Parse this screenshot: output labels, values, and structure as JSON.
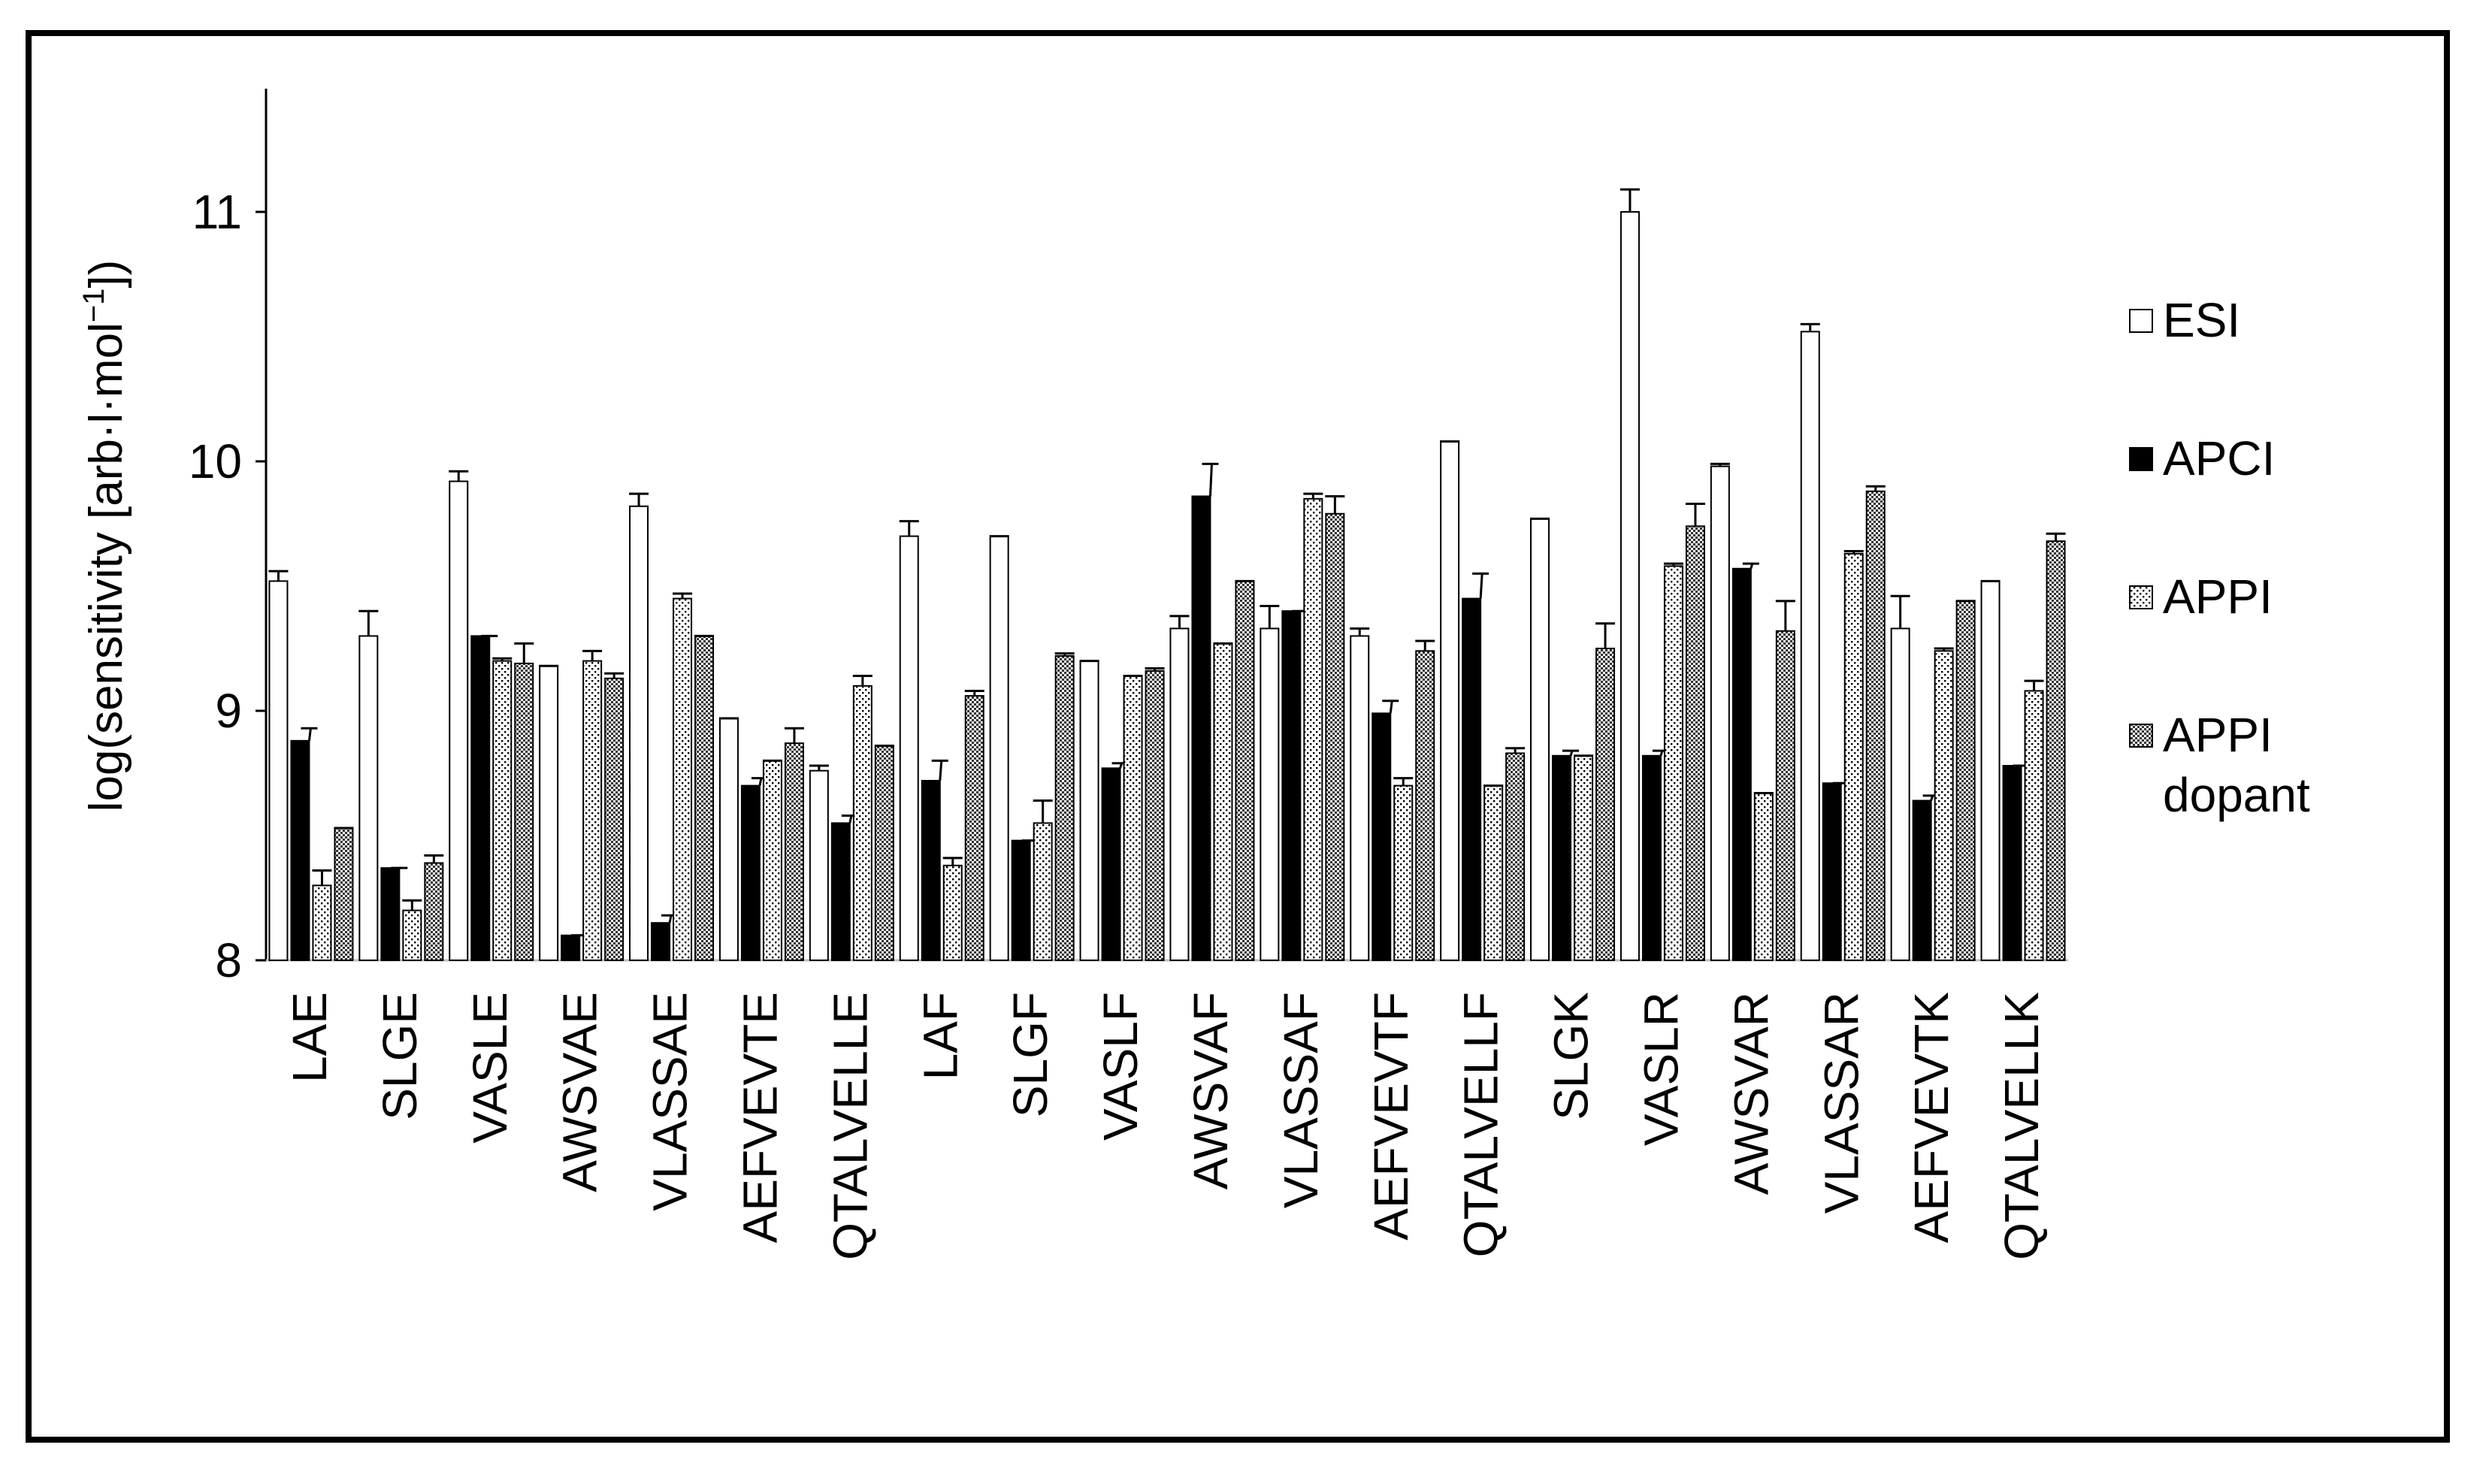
{
  "chart_data": {
    "type": "bar",
    "title": "",
    "xlabel": "",
    "ylabel": "log(sensitivity [arb·l·mol",
    "ylabel_exp": "−1",
    "ylabel_close": "])",
    "ylim": [
      8,
      11.5
    ],
    "yticks": [
      8,
      9,
      10,
      11
    ],
    "ytick_labels": [
      "8",
      "9",
      "10",
      "11"
    ],
    "grid": false,
    "legend_position": "right",
    "categories": [
      "LAE",
      "SLGE",
      "VASLE",
      "AWSVAE",
      "VLASSAE",
      "AEFVEVTE",
      "QTALVELLE",
      "LAF",
      "SLGF",
      "VASLF",
      "AWSVAF",
      "VLASSAF",
      "AEFVEVTF",
      "QTALVELLF",
      "SLGK",
      "VASLR",
      "AWSVAR",
      "VLASSAR",
      "AEFVEVTK",
      "QTALVELLK"
    ],
    "series": [
      {
        "name": "ESI",
        "legend_label": "ESI",
        "fill": "none",
        "values": [
          9.52,
          9.3,
          9.92,
          9.18,
          9.82,
          8.97,
          8.76,
          9.7,
          9.7,
          9.2,
          9.33,
          9.33,
          9.3,
          10.08,
          9.77,
          11.0,
          9.98,
          10.52,
          9.33,
          9.52
        ],
        "errors": [
          0.04,
          0.1,
          0.04,
          0.0,
          0.05,
          0.0,
          0.02,
          0.06,
          0.0,
          0.0,
          0.05,
          0.09,
          0.03,
          0.0,
          0.0,
          0.09,
          0.01,
          0.03,
          0.13,
          0.0
        ]
      },
      {
        "name": "APCI",
        "legend_label": "APCI",
        "fill": "solid",
        "values": [
          8.88,
          8.37,
          9.3,
          8.1,
          8.15,
          8.7,
          8.55,
          8.72,
          8.48,
          8.77,
          9.86,
          9.4,
          8.99,
          9.45,
          8.82,
          8.82,
          9.57,
          8.71,
          8.64,
          8.78
        ],
        "errors": [
          0.05,
          0.0,
          0.0,
          0.0,
          0.03,
          0.03,
          0.03,
          0.08,
          0.0,
          0.02,
          0.13,
          0.0,
          0.05,
          0.1,
          0.02,
          0.02,
          0.02,
          0.0,
          0.02,
          0.0
        ],
        "error_on_right_only": true
      },
      {
        "name": "APPI",
        "legend_label": "APPI",
        "fill": "dots",
        "values": [
          8.3,
          8.2,
          9.2,
          9.2,
          9.45,
          8.8,
          9.1,
          8.38,
          8.55,
          9.14,
          9.27,
          9.85,
          8.7,
          8.7,
          8.82,
          9.58,
          8.67,
          9.63,
          9.24,
          9.08
        ],
        "errors": [
          0.06,
          0.04,
          0.01,
          0.04,
          0.02,
          0.0,
          0.04,
          0.03,
          0.09,
          0.0,
          0.0,
          0.02,
          0.03,
          0.0,
          0.0,
          0.01,
          0.0,
          0.01,
          0.01,
          0.04
        ]
      },
      {
        "name": "APPI dopant",
        "legend_label": [
          "APPI",
          "dopant"
        ],
        "fill": "checker",
        "values": [
          8.53,
          8.39,
          9.19,
          9.13,
          9.3,
          8.87,
          8.86,
          9.06,
          9.22,
          9.16,
          9.52,
          9.79,
          9.24,
          8.83,
          9.25,
          9.74,
          9.32,
          9.88,
          9.44,
          9.68
        ],
        "errors": [
          0.0,
          0.03,
          0.08,
          0.02,
          0.0,
          0.06,
          0.0,
          0.02,
          0.01,
          0.01,
          0.0,
          0.07,
          0.04,
          0.02,
          0.1,
          0.09,
          0.12,
          0.02,
          0.0,
          0.03
        ]
      }
    ]
  }
}
